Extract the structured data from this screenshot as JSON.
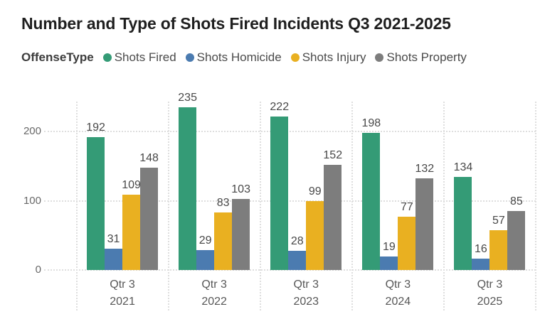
{
  "chart_data": {
    "type": "bar",
    "title": "Number and Type of Shots Fired Incidents Q3 2021-2025",
    "legend_label": "OffenseType",
    "legend_position": "top",
    "categories": [
      [
        "Qtr 3",
        "2021"
      ],
      [
        "Qtr 3",
        "2022"
      ],
      [
        "Qtr 3",
        "2023"
      ],
      [
        "Qtr 3",
        "2024"
      ],
      [
        "Qtr 3",
        "2025"
      ]
    ],
    "series": [
      {
        "name": "Shots Fired",
        "color": "#349B76",
        "values": [
          192,
          235,
          222,
          198,
          134
        ]
      },
      {
        "name": "Shots Homicide",
        "color": "#4B7BB0",
        "values": [
          31,
          29,
          28,
          19,
          16
        ]
      },
      {
        "name": "Shots Injury",
        "color": "#E9B021",
        "values": [
          109,
          83,
          99,
          77,
          57
        ]
      },
      {
        "name": "Shots Property",
        "color": "#7D7D7D",
        "values": [
          148,
          103,
          152,
          132,
          85
        ]
      }
    ],
    "yticks": [
      0,
      100,
      200
    ],
    "ylim": [
      0,
      245
    ],
    "grid": "dotted horizontal gridlines and dotted vertical category separators",
    "background": "#FFFFFF"
  }
}
